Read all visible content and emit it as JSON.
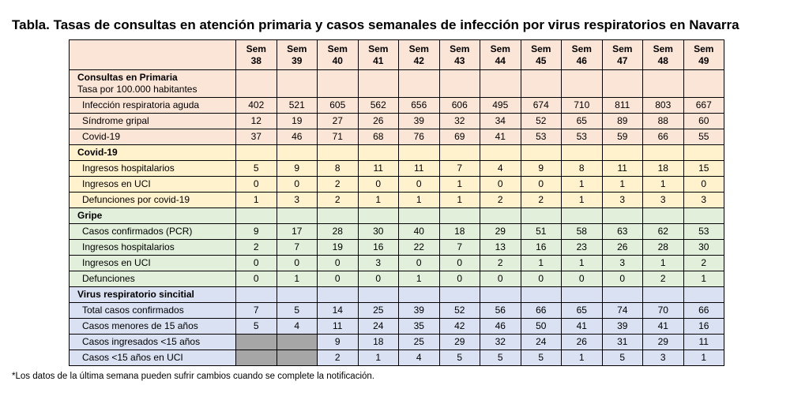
{
  "header": {
    "title": "Tabla. Tasas de consultas en atención primaria y casos semanales de infección por virus respiratorios en Navarra"
  },
  "table": {
    "columns": [
      "Sem 38",
      "Sem 39",
      "Sem 40",
      "Sem 41",
      "Sem 42",
      "Sem 43",
      "Sem 44",
      "Sem 45",
      "Sem 46",
      "Sem 47",
      "Sem 48",
      "Sem 49"
    ],
    "sections": [
      {
        "title": "Consultas en Primaria",
        "subtitle": "Tasa por 100.000 habitantes",
        "color": "#fbe5d6",
        "rows": [
          {
            "label": "Infección respiratoria aguda",
            "values": [
              402,
              521,
              605,
              562,
              656,
              606,
              495,
              674,
              710,
              811,
              803,
              667
            ]
          },
          {
            "label": "Síndrome gripal",
            "values": [
              12,
              19,
              27,
              26,
              39,
              32,
              34,
              52,
              65,
              89,
              88,
              60
            ]
          },
          {
            "label": "Covid-19",
            "values": [
              37,
              46,
              71,
              68,
              76,
              69,
              41,
              53,
              53,
              59,
              66,
              55
            ]
          }
        ]
      },
      {
        "title": "Covid-19",
        "color": "#fff2cc",
        "rows": [
          {
            "label": "Ingresos hospitalarios",
            "values": [
              5,
              9,
              8,
              11,
              11,
              7,
              4,
              9,
              8,
              11,
              18,
              15
            ]
          },
          {
            "label": "Ingresos en UCI",
            "values": [
              0,
              0,
              2,
              0,
              0,
              1,
              0,
              0,
              1,
              1,
              1,
              0
            ]
          },
          {
            "label": "Defunciones por covid-19",
            "values": [
              1,
              3,
              2,
              1,
              1,
              1,
              2,
              2,
              1,
              3,
              3,
              3
            ]
          }
        ]
      },
      {
        "title": "Gripe",
        "color": "#e2efda",
        "rows": [
          {
            "label": "Casos confirmados (PCR)",
            "values": [
              9,
              17,
              28,
              30,
              40,
              18,
              29,
              51,
              58,
              63,
              62,
              53
            ]
          },
          {
            "label": "Ingresos hospitalarios",
            "values": [
              2,
              7,
              19,
              16,
              22,
              7,
              13,
              16,
              23,
              26,
              28,
              30
            ]
          },
          {
            "label": "Ingresos en UCI",
            "values": [
              0,
              0,
              0,
              3,
              0,
              0,
              2,
              1,
              1,
              3,
              1,
              2
            ]
          },
          {
            "label": "Defunciones",
            "values": [
              0,
              1,
              0,
              0,
              1,
              0,
              0,
              0,
              0,
              0,
              2,
              1
            ]
          }
        ]
      },
      {
        "title": "Virus respiratorio sincitial",
        "color": "#d9e1f2",
        "rows": [
          {
            "label": "Total casos confirmados",
            "values": [
              7,
              5,
              14,
              25,
              39,
              52,
              56,
              66,
              65,
              74,
              70,
              66
            ]
          },
          {
            "label": "Casos menores de 15 años",
            "values": [
              5,
              4,
              11,
              24,
              35,
              42,
              46,
              50,
              41,
              39,
              41,
              16
            ]
          },
          {
            "label": "Casos ingresados <15 años",
            "values": [
              null,
              null,
              9,
              18,
              25,
              29,
              32,
              24,
              26,
              31,
              29,
              11
            ]
          },
          {
            "label": "Casos <15 años en UCI",
            "values": [
              null,
              null,
              2,
              1,
              4,
              5,
              5,
              5,
              1,
              5,
              3,
              1
            ]
          }
        ]
      }
    ]
  },
  "footnote": "*Los datos de la última semana pueden sufrir cambios cuando se complete la notificación."
}
